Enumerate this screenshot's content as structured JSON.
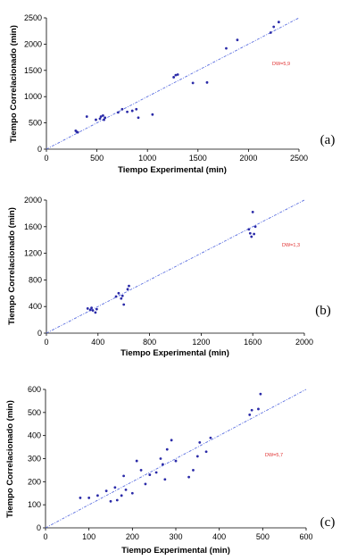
{
  "chart_data": [
    {
      "type": "scatter",
      "panel_label": "(a)",
      "xlabel": "Tiempo Experimental (min)",
      "ylabel": "Tiempo Correlacionado (min)",
      "xlim": [
        0,
        2500
      ],
      "ylim": [
        0,
        2500
      ],
      "xticks": [
        0,
        500,
        1000,
        1500,
        2000,
        2500
      ],
      "yticks": [
        0,
        500,
        1000,
        1500,
        2000,
        2500
      ],
      "annotation": "DW=5,9",
      "fit_line": [
        [
          0,
          0
        ],
        [
          2500,
          2500
        ]
      ],
      "points": [
        [
          290,
          350
        ],
        [
          300,
          330
        ],
        [
          310,
          320
        ],
        [
          400,
          620
        ],
        [
          490,
          560
        ],
        [
          530,
          580
        ],
        [
          540,
          620
        ],
        [
          560,
          640
        ],
        [
          570,
          560
        ],
        [
          580,
          600
        ],
        [
          710,
          700
        ],
        [
          750,
          760
        ],
        [
          800,
          710
        ],
        [
          850,
          730
        ],
        [
          890,
          760
        ],
        [
          910,
          600
        ],
        [
          1050,
          660
        ],
        [
          1260,
          1370
        ],
        [
          1280,
          1410
        ],
        [
          1300,
          1420
        ],
        [
          1450,
          1260
        ],
        [
          1590,
          1270
        ],
        [
          1780,
          1920
        ],
        [
          1890,
          2080
        ],
        [
          2220,
          2220
        ],
        [
          2250,
          2330
        ],
        [
          2300,
          2420
        ]
      ]
    },
    {
      "type": "scatter",
      "panel_label": "(b)",
      "xlabel": "Tiempo Experimental (min)",
      "ylabel": "Tiempo Correlacionado (min)",
      "xlim": [
        0,
        2000
      ],
      "ylim": [
        0,
        2000
      ],
      "xticks": [
        0,
        400,
        800,
        1200,
        1600,
        2000
      ],
      "yticks": [
        0,
        400,
        800,
        1200,
        1600,
        2000
      ],
      "annotation": "DW=1,3",
      "fit_line": [
        [
          0,
          0
        ],
        [
          2000,
          2000
        ]
      ],
      "points": [
        [
          320,
          370
        ],
        [
          340,
          350
        ],
        [
          350,
          380
        ],
        [
          360,
          340
        ],
        [
          380,
          310
        ],
        [
          390,
          360
        ],
        [
          540,
          550
        ],
        [
          560,
          600
        ],
        [
          580,
          520
        ],
        [
          590,
          560
        ],
        [
          600,
          430
        ],
        [
          630,
          660
        ],
        [
          640,
          710
        ],
        [
          1570,
          1560
        ],
        [
          1580,
          1500
        ],
        [
          1590,
          1450
        ],
        [
          1600,
          1820
        ],
        [
          1610,
          1490
        ],
        [
          1620,
          1600
        ]
      ]
    },
    {
      "type": "scatter",
      "panel_label": "(c)",
      "xlabel": "Tiempo Experimental (min)",
      "ylabel": "Tiempo Correlacionado (min)",
      "xlim": [
        0,
        600
      ],
      "ylim": [
        0,
        600
      ],
      "xticks": [
        0,
        100,
        200,
        300,
        400,
        500,
        600
      ],
      "yticks": [
        0,
        100,
        200,
        300,
        400,
        500,
        600
      ],
      "annotation": "DW=5,7",
      "fit_line": [
        [
          0,
          0
        ],
        [
          600,
          600
        ]
      ],
      "points": [
        [
          80,
          130
        ],
        [
          100,
          130
        ],
        [
          120,
          140
        ],
        [
          140,
          160
        ],
        [
          150,
          115
        ],
        [
          160,
          175
        ],
        [
          165,
          120
        ],
        [
          175,
          140
        ],
        [
          180,
          225
        ],
        [
          185,
          165
        ],
        [
          200,
          150
        ],
        [
          210,
          290
        ],
        [
          220,
          250
        ],
        [
          230,
          190
        ],
        [
          240,
          230
        ],
        [
          255,
          240
        ],
        [
          265,
          300
        ],
        [
          270,
          275
        ],
        [
          275,
          210
        ],
        [
          280,
          340
        ],
        [
          290,
          380
        ],
        [
          300,
          290
        ],
        [
          330,
          220
        ],
        [
          340,
          250
        ],
        [
          350,
          310
        ],
        [
          355,
          370
        ],
        [
          370,
          330
        ],
        [
          380,
          390
        ],
        [
          470,
          490
        ],
        [
          475,
          510
        ],
        [
          490,
          515
        ],
        [
          495,
          580
        ]
      ]
    }
  ]
}
